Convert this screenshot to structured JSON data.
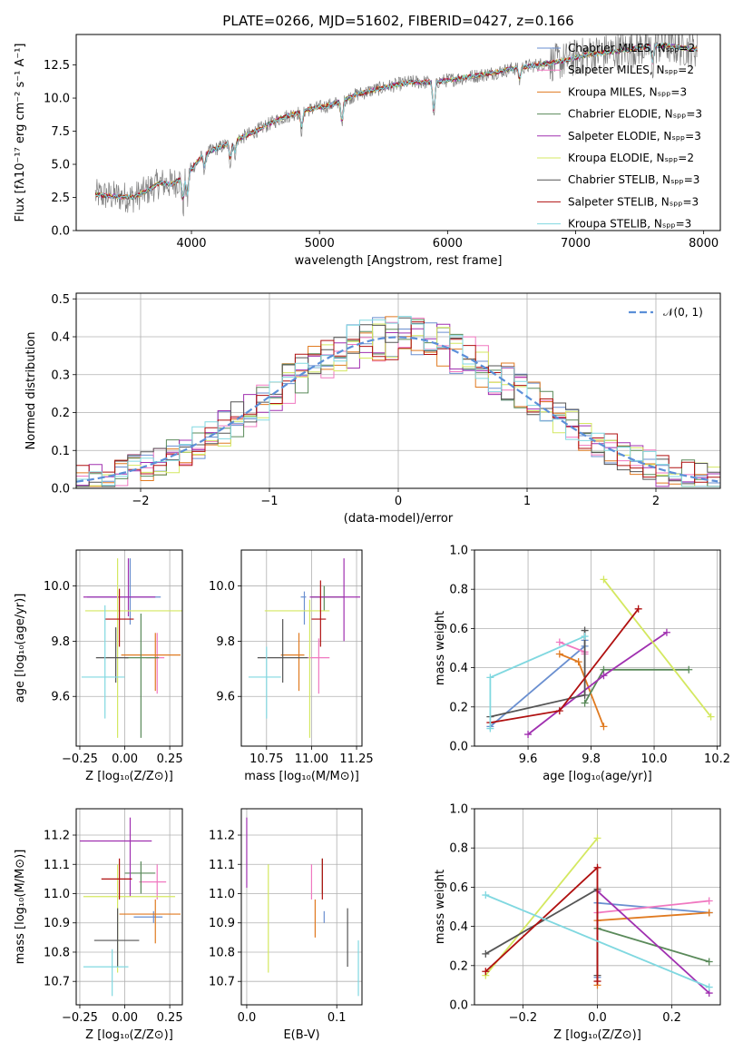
{
  "colors": {
    "series": [
      "#6a8fd0",
      "#f078c0",
      "#e07a20",
      "#5a8a5a",
      "#a030b0",
      "#d4e860",
      "#555555",
      "#b01010",
      "#80d8e0"
    ],
    "gray": "#808080",
    "normal_fit": "#5b8fd8"
  },
  "chart_data": [
    {
      "id": "spectrum",
      "type": "line",
      "title": "PLATE=0266, MJD=51602, FIBERID=0427, z=0.166",
      "xlabel": "wavelength [Angstrom, rest frame]",
      "ylabel": "Flux [fλ10⁻¹⁷ erg cm⁻² s⁻¹ A⁻¹]",
      "xlim": [
        3100,
        8130
      ],
      "ylim": [
        0,
        14.8
      ],
      "xticks": [
        4000,
        5000,
        6000,
        7000,
        8000
      ],
      "yticks": [
        0.0,
        2.5,
        5.0,
        7.5,
        10.0,
        12.5
      ],
      "grid": false,
      "legend_position": "top-right",
      "legend": [
        "Chabrier MILES, Nₛₚₚ=2",
        "Salpeter MILES, Nₛₚₚ=2",
        "Kroupa MILES, Nₛₚₚ=3",
        "Chabrier ELODIE, Nₛₚₚ=3",
        "Salpeter ELODIE, Nₛₚₚ=3",
        "Kroupa ELODIE, Nₛₚₚ=2",
        "Chabrier STELIB, Nₛₚₚ=3",
        "Salpeter STELIB, Nₛₚₚ=3",
        "Kroupa STELIB, Nₛₚₚ=3"
      ],
      "continuum": [
        [
          3250,
          2.7
        ],
        [
          3400,
          2.6
        ],
        [
          3550,
          2.5
        ],
        [
          3650,
          3.0
        ],
        [
          3750,
          3.6
        ],
        [
          3850,
          3.5
        ],
        [
          3950,
          4.1
        ],
        [
          4100,
          5.8
        ],
        [
          4300,
          6.6
        ],
        [
          4500,
          7.5
        ],
        [
          4700,
          8.5
        ],
        [
          4900,
          9.1
        ],
        [
          5100,
          9.5
        ],
        [
          5300,
          10.3
        ],
        [
          5500,
          10.8
        ],
        [
          5700,
          11.2
        ],
        [
          5900,
          11.2
        ],
        [
          6100,
          11.5
        ],
        [
          6300,
          11.8
        ],
        [
          6500,
          12.2
        ],
        [
          6700,
          12.5
        ],
        [
          6900,
          12.8
        ],
        [
          7100,
          13.3
        ],
        [
          7300,
          13.5
        ],
        [
          7500,
          13.8
        ],
        [
          7700,
          14.0
        ],
        [
          7900,
          13.7
        ]
      ],
      "absorption": [
        [
          3934,
          2.2
        ],
        [
          3968,
          2.0
        ],
        [
          4102,
          1.2
        ],
        [
          4304,
          1.5
        ],
        [
          4340,
          1.0
        ],
        [
          4861,
          1.5
        ],
        [
          5175,
          2.0
        ],
        [
          5893,
          2.8
        ],
        [
          6563,
          1.0
        ],
        [
          7600,
          1.5
        ]
      ]
    },
    {
      "id": "residuals",
      "type": "bar",
      "xlabel": "(data-model)/error",
      "ylabel": "Normed distribution",
      "xlim": [
        -2.5,
        2.5
      ],
      "ylim": [
        0,
        0.515
      ],
      "xticks": [
        -2,
        -1,
        0,
        1,
        2
      ],
      "yticks": [
        0.0,
        0.1,
        0.2,
        0.3,
        0.4,
        0.5
      ],
      "grid": true,
      "legend_position": "top-right",
      "legend": [
        "𝒩(0, 1)"
      ],
      "bin_width": 0.1
    },
    {
      "id": "age-vs-z",
      "type": "scatter",
      "xlabel": "Z [log₁₀(Z/Z⊙)]",
      "ylabel": "age  [log₁₀(age/yr)]",
      "xlim": [
        -0.27,
        0.32
      ],
      "ylim": [
        9.42,
        10.13
      ],
      "xticks": [
        -0.25,
        0.0,
        0.25
      ],
      "yticks": [
        9.6,
        9.8,
        10.0
      ],
      "grid": true,
      "points": [
        {
          "x": 0.03,
          "y": 9.96,
          "xerr": [
            0.24,
            0.17
          ],
          "yerr": [
            0.1,
            0.14
          ],
          "c": 0
        },
        {
          "x": 0.18,
          "y": 9.74,
          "xerr": [
            0.06,
            0.04
          ],
          "yerr": [
            0.13,
            0.09
          ],
          "c": 1
        },
        {
          "x": 0.17,
          "y": 9.75,
          "xerr": [
            0.19,
            0.14
          ],
          "yerr": [
            0.13,
            0.08
          ],
          "c": 2
        },
        {
          "x": 0.09,
          "y": 9.74,
          "xerr": [
            0.09,
            0.1
          ],
          "yerr": [
            0.29,
            0.16
          ],
          "c": 3
        },
        {
          "x": 0.02,
          "y": 9.96,
          "xerr": [
            0.25,
            0.15
          ],
          "yerr": [
            0.07,
            0.14
          ],
          "c": 4
        },
        {
          "x": -0.04,
          "y": 9.91,
          "xerr": [
            0.18,
            0.36
          ],
          "yerr": [
            0.46,
            0.19
          ],
          "c": 5
        },
        {
          "x": -0.05,
          "y": 9.74,
          "xerr": [
            0.11,
            0.07
          ],
          "yerr": [
            0.09,
            0.11
          ],
          "c": 6
        },
        {
          "x": -0.03,
          "y": 9.88,
          "xerr": [
            0.08,
            0.08
          ],
          "yerr": [
            0.1,
            0.11
          ],
          "c": 7
        },
        {
          "x": -0.11,
          "y": 9.67,
          "xerr": [
            0.13,
            0.11
          ],
          "yerr": [
            0.15,
            0.26
          ],
          "c": 8
        }
      ]
    },
    {
      "id": "age-vs-mass",
      "type": "scatter",
      "xlabel": "mass [log₁₀(M/M⊙)]",
      "ylabel": "",
      "xlim": [
        10.61,
        11.28
      ],
      "ylim": [
        9.42,
        10.13
      ],
      "xticks": [
        10.75,
        11.0,
        11.25
      ],
      "yticks": [
        9.6,
        9.8,
        10.0
      ],
      "grid": true,
      "points": [
        {
          "x": 10.96,
          "y": 9.96,
          "xerr": [
            0.02,
            0.01
          ],
          "yerr": [
            0.1,
            0.02
          ],
          "c": 0
        },
        {
          "x": 11.04,
          "y": 9.74,
          "xerr": [
            0.06,
            0.06
          ],
          "yerr": [
            0.13,
            0.07
          ],
          "c": 1
        },
        {
          "x": 10.93,
          "y": 9.75,
          "xerr": [
            0.1,
            0.03
          ],
          "yerr": [
            0.13,
            0.08
          ],
          "c": 2
        },
        {
          "x": 11.07,
          "y": 9.96,
          "xerr": [
            0.07,
            0.11
          ],
          "yerr": [
            0.05,
            0.04
          ],
          "c": 3
        },
        {
          "x": 11.18,
          "y": 9.96,
          "xerr": [
            0.19,
            0.09
          ],
          "yerr": [
            0.16,
            0.14
          ],
          "c": 4
        },
        {
          "x": 10.99,
          "y": 9.91,
          "xerr": [
            0.25,
            0.11
          ],
          "yerr": [
            0.46,
            0.04
          ],
          "c": 5
        },
        {
          "x": 10.84,
          "y": 9.74,
          "xerr": [
            0.14,
            0.14
          ],
          "yerr": [
            0.09,
            0.14
          ],
          "c": 6
        },
        {
          "x": 11.05,
          "y": 9.88,
          "xerr": [
            0.05,
            0.03
          ],
          "yerr": [
            0.1,
            0.14
          ],
          "c": 7
        },
        {
          "x": 10.75,
          "y": 9.67,
          "xerr": [
            0.1,
            0.08
          ],
          "yerr": [
            0.15,
            0.11
          ],
          "c": 8
        }
      ]
    },
    {
      "id": "weight-vs-age",
      "type": "line",
      "xlabel": "age  [log₁₀(age/yr)]",
      "ylabel": "mass weight",
      "xlim": [
        9.43,
        10.21
      ],
      "ylim": [
        0,
        1.0
      ],
      "xticks": [
        9.6,
        9.8,
        10.0,
        10.2
      ],
      "yticks": [
        0.0,
        0.2,
        0.4,
        0.6,
        0.8,
        1.0
      ],
      "grid": true,
      "series": [
        {
          "c": 0,
          "x": [
            9.48,
            9.78,
            9.78
          ],
          "y": [
            0.1,
            0.51,
            0.54
          ]
        },
        {
          "c": 1,
          "x": [
            9.7,
            9.78,
            9.78
          ],
          "y": [
            0.53,
            0.48,
            0.47
          ]
        },
        {
          "c": 2,
          "x": [
            9.7,
            9.76,
            9.84
          ],
          "y": [
            0.47,
            0.43,
            0.1
          ]
        },
        {
          "c": 3,
          "x": [
            9.78,
            9.84,
            10.11
          ],
          "y": [
            0.22,
            0.39,
            0.39
          ]
        },
        {
          "c": 4,
          "x": [
            9.6,
            9.84,
            10.04
          ],
          "y": [
            0.06,
            0.36,
            0.58
          ]
        },
        {
          "c": 5,
          "x": [
            9.84,
            10.18
          ],
          "y": [
            0.85,
            0.15
          ]
        },
        {
          "c": 6,
          "x": [
            9.48,
            9.78,
            9.78
          ],
          "y": [
            0.15,
            0.26,
            0.59
          ]
        },
        {
          "c": 7,
          "x": [
            9.48,
            9.7,
            9.95
          ],
          "y": [
            0.12,
            0.18,
            0.7
          ]
        },
        {
          "c": 8,
          "x": [
            9.48,
            9.48,
            9.78
          ],
          "y": [
            0.09,
            0.35,
            0.56
          ]
        }
      ]
    },
    {
      "id": "mass-vs-z",
      "type": "scatter",
      "xlabel": "Z [log₁₀(Z/Z⊙)]",
      "ylabel": "mass [log₁₀(M/M⊙)]",
      "xlim": [
        -0.27,
        0.32
      ],
      "ylim": [
        10.62,
        11.29
      ],
      "xticks": [
        -0.25,
        0.0,
        0.25
      ],
      "yticks": [
        10.7,
        10.8,
        10.9,
        11.0,
        11.1,
        11.2
      ],
      "grid": true,
      "points": [
        {
          "x": 0.16,
          "y": 10.92,
          "xerr": [
            0.11,
            0.05
          ],
          "yerr": [
            0.02,
            0.02
          ],
          "c": 0
        },
        {
          "x": 0.18,
          "y": 11.04,
          "xerr": [
            0.1,
            0.05
          ],
          "yerr": [
            0.06,
            0.06
          ],
          "c": 1
        },
        {
          "x": 0.17,
          "y": 10.93,
          "xerr": [
            0.2,
            0.14
          ],
          "yerr": [
            0.1,
            0.05
          ],
          "c": 2
        },
        {
          "x": 0.09,
          "y": 11.07,
          "xerr": [
            0.09,
            0.08
          ],
          "yerr": [
            0.07,
            0.04
          ],
          "c": 3
        },
        {
          "x": 0.03,
          "y": 11.18,
          "xerr": [
            0.28,
            0.12
          ],
          "yerr": [
            0.19,
            0.08
          ],
          "c": 4
        },
        {
          "x": -0.04,
          "y": 10.99,
          "xerr": [
            0.19,
            0.32
          ],
          "yerr": [
            0.26,
            0.11
          ],
          "c": 5
        },
        {
          "x": -0.04,
          "y": 10.84,
          "xerr": [
            0.13,
            0.12
          ],
          "yerr": [
            0.09,
            0.11
          ],
          "c": 6
        },
        {
          "x": -0.03,
          "y": 11.05,
          "xerr": [
            0.1,
            0.07
          ],
          "yerr": [
            0.07,
            0.07
          ],
          "c": 7
        },
        {
          "x": -0.07,
          "y": 10.75,
          "xerr": [
            0.16,
            0.09
          ],
          "yerr": [
            0.1,
            0.06
          ],
          "c": 8
        }
      ]
    },
    {
      "id": "mass-vs-ebv",
      "type": "scatter",
      "xlabel": "E(B-V)",
      "ylabel": "",
      "xlim": [
        -0.006,
        0.128
      ],
      "ylim": [
        10.62,
        11.29
      ],
      "xticks": [
        0.0,
        0.1
      ],
      "yticks": [
        10.7,
        10.8,
        10.9,
        11.0,
        11.1,
        11.2
      ],
      "grid": true,
      "points": [
        {
          "x": 0.086,
          "y": 10.92,
          "xerr": [
            0,
            0
          ],
          "yerr": [
            0.02,
            0.02
          ],
          "c": 0
        },
        {
          "x": 0.072,
          "y": 11.04,
          "xerr": [
            0,
            0
          ],
          "yerr": [
            0.06,
            0.06
          ],
          "c": 1
        },
        {
          "x": 0.076,
          "y": 10.93,
          "xerr": [
            0,
            0
          ],
          "yerr": [
            0.08,
            0.05
          ],
          "c": 2
        },
        {
          "x": 0.084,
          "y": 11.07,
          "xerr": [
            0,
            0
          ],
          "yerr": [
            0.07,
            0.05
          ],
          "c": 3
        },
        {
          "x": 0.0,
          "y": 11.18,
          "xerr": [
            0,
            0
          ],
          "yerr": [
            0.16,
            0.08
          ],
          "c": 4
        },
        {
          "x": 0.024,
          "y": 10.99,
          "xerr": [
            0,
            0
          ],
          "yerr": [
            0.26,
            0.11
          ],
          "c": 5
        },
        {
          "x": 0.112,
          "y": 10.84,
          "xerr": [
            0,
            0
          ],
          "yerr": [
            0.09,
            0.11
          ],
          "c": 6
        },
        {
          "x": 0.084,
          "y": 11.05,
          "xerr": [
            0,
            0
          ],
          "yerr": [
            0.07,
            0.07
          ],
          "c": 7
        },
        {
          "x": 0.124,
          "y": 10.75,
          "xerr": [
            0,
            0
          ],
          "yerr": [
            0.1,
            0.09
          ],
          "c": 8
        }
      ]
    },
    {
      "id": "weight-vs-z",
      "type": "line",
      "xlabel": "Z [log₁₀(Z/Z⊙)]",
      "ylabel": "mass weight",
      "xlim": [
        -0.33,
        0.33
      ],
      "ylim": [
        0,
        1.0
      ],
      "xticks": [
        -0.2,
        0.0,
        0.2
      ],
      "yticks": [
        0.0,
        0.2,
        0.4,
        0.6,
        0.8,
        1.0
      ],
      "grid": true,
      "series": [
        {
          "c": 0,
          "x": [
            0.0,
            0.0,
            0.3
          ],
          "y": [
            0.14,
            0.52,
            0.47
          ]
        },
        {
          "c": 1,
          "x": [
            0.0,
            0.3
          ],
          "y": [
            0.47,
            0.53
          ]
        },
        {
          "c": 2,
          "x": [
            0.0,
            0.0,
            0.3
          ],
          "y": [
            0.1,
            0.43,
            0.47
          ]
        },
        {
          "c": 3,
          "x": [
            0.0,
            0.3
          ],
          "y": [
            0.39,
            0.22
          ]
        },
        {
          "c": 4,
          "x": [
            0.0,
            0.3
          ],
          "y": [
            0.58,
            0.06
          ]
        },
        {
          "c": 5,
          "x": [
            -0.3,
            0.0
          ],
          "y": [
            0.15,
            0.85
          ]
        },
        {
          "c": 6,
          "x": [
            -0.3,
            0.0,
            0.0
          ],
          "y": [
            0.26,
            0.59,
            0.15
          ]
        },
        {
          "c": 7,
          "x": [
            -0.3,
            0.0,
            0.0
          ],
          "y": [
            0.17,
            0.7,
            0.12
          ]
        },
        {
          "c": 8,
          "x": [
            -0.3,
            0.3
          ],
          "y": [
            0.56,
            0.09
          ]
        }
      ]
    }
  ]
}
